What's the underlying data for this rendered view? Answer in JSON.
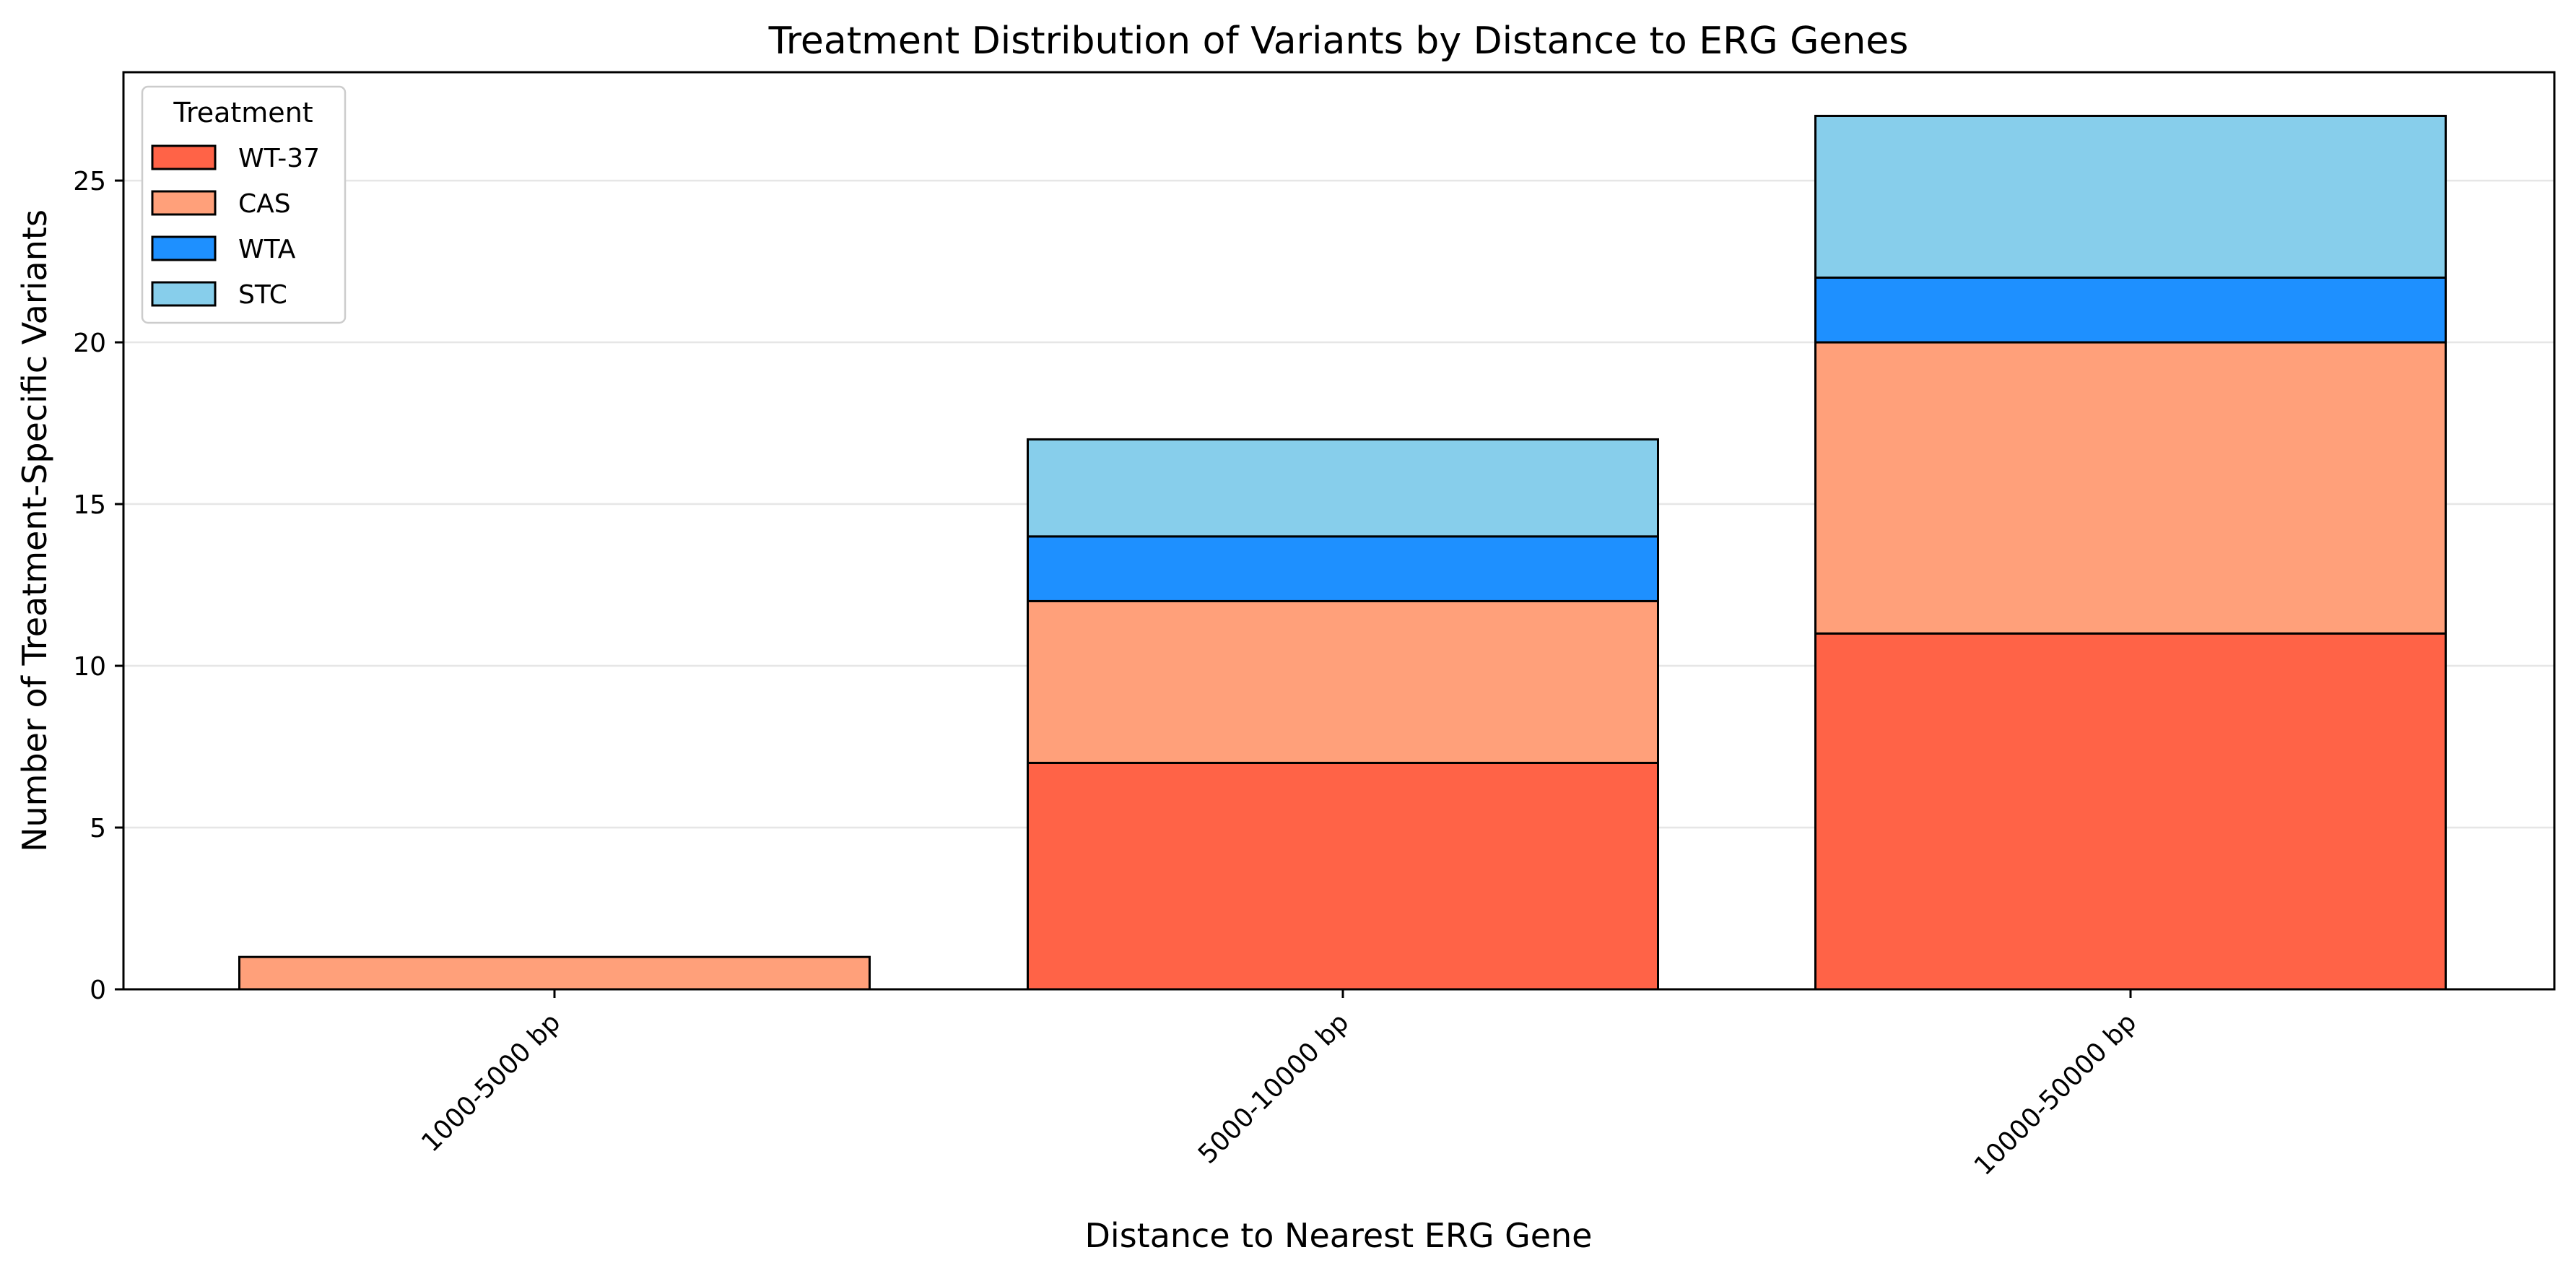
{
  "chart_data": {
    "type": "bar",
    "stacked": true,
    "title": "Treatment Distribution of Variants by Distance to ERG Genes",
    "xlabel": "Distance to Nearest ERG Gene",
    "ylabel": "Number of Treatment-Specific Variants",
    "categories": [
      "1000-5000 bp",
      "5000-10000 bp",
      "10000-50000 bp"
    ],
    "series": [
      {
        "name": "WT-37",
        "color": "#ff6347",
        "values": [
          0,
          7,
          11
        ]
      },
      {
        "name": "CAS",
        "color": "#ffa07a",
        "values": [
          1,
          5,
          9
        ]
      },
      {
        "name": "WTA",
        "color": "#1e90ff",
        "values": [
          0,
          2,
          2
        ]
      },
      {
        "name": "STC",
        "color": "#87ceeb",
        "values": [
          0,
          3,
          5
        ]
      }
    ],
    "ylim": [
      0,
      28.35
    ],
    "yticks": [
      0,
      5,
      10,
      15,
      20,
      25
    ],
    "grid": "y",
    "legend": {
      "title": "Treatment",
      "placement": "top-left"
    }
  }
}
